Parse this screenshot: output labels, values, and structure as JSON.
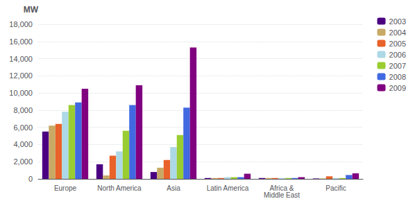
{
  "chart_data": {
    "type": "bar",
    "categories": [
      "Europe",
      "North America",
      "Asia",
      "Latin America",
      "Africa &\nMiddle East",
      "Pacific"
    ],
    "series": [
      {
        "name": "2003",
        "color": "#4B0082",
        "values": [
          5500,
          1700,
          800,
          100,
          100,
          50
        ]
      },
      {
        "name": "2004",
        "color": "#C8A965",
        "values": [
          6200,
          400,
          1300,
          100,
          100,
          50
        ]
      },
      {
        "name": "2005",
        "color": "#E8622A",
        "values": [
          6400,
          2700,
          2200,
          100,
          100,
          300
        ]
      },
      {
        "name": "2006",
        "color": "#ADD8E6",
        "values": [
          7800,
          3200,
          3700,
          200,
          100,
          100
        ]
      },
      {
        "name": "2007",
        "color": "#9ACD32",
        "values": [
          8600,
          5600,
          5100,
          200,
          100,
          100
        ]
      },
      {
        "name": "2008",
        "color": "#4169E1",
        "values": [
          8900,
          8600,
          8300,
          200,
          100,
          450
        ]
      },
      {
        "name": "2009",
        "color": "#800080",
        "values": [
          10500,
          10900,
          15300,
          600,
          200,
          650
        ]
      }
    ],
    "ylabel": "MW",
    "ylim": [
      0,
      18000
    ],
    "yticks": [
      0,
      {
        "value": 2000,
        "label": "2,000"
      },
      {
        "value": 4000,
        "label": "4,000"
      },
      {
        "value": 6000,
        "label": "6,000"
      },
      {
        "value": 8000,
        "label": "8,000"
      },
      {
        "value": 10000,
        "label": "10,000"
      },
      {
        "value": 12000,
        "label": "12,000"
      },
      {
        "value": 14000,
        "label": "14,000"
      },
      {
        "value": 16000,
        "label": "16,000"
      },
      {
        "value": 18000,
        "label": "18,000"
      }
    ],
    "grid": true,
    "legend": "upper right"
  }
}
